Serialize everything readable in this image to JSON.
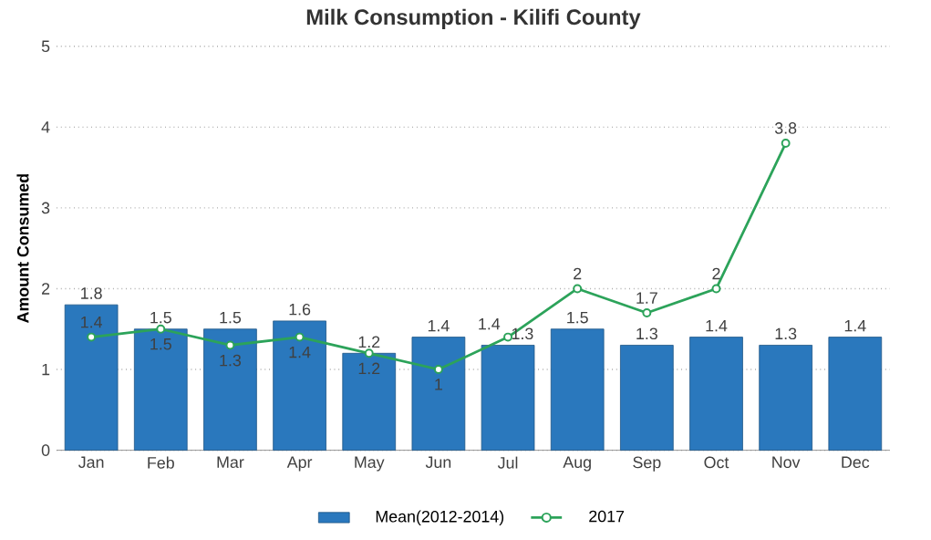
{
  "chart_data": {
    "type": "bar",
    "title": "Milk Consumption - Kilifi County",
    "ylabel": "Amount Consumed",
    "categories": [
      "Jan",
      "Feb",
      "Mar",
      "Apr",
      "May",
      "Jun",
      "Jul",
      "Aug",
      "Sep",
      "Oct",
      "Nov",
      "Dec"
    ],
    "series": [
      {
        "name": "Mean(2012-2014)",
        "color": "#2a78bd",
        "values": [
          1.8,
          1.5,
          1.5,
          1.6,
          1.2,
          1.4,
          1.3,
          1.5,
          1.3,
          1.4,
          1.3,
          1.4
        ]
      },
      {
        "name": "2017",
        "type": "line",
        "color": "#2ca35a",
        "marker": "circle",
        "values": [
          1.4,
          1.5,
          1.3,
          1.4,
          1.2,
          1,
          1.4,
          2,
          1.7,
          2,
          3.8,
          null
        ]
      }
    ],
    "ylim": [
      0,
      5
    ],
    "yticks": [
      0,
      1,
      2,
      3,
      4,
      5
    ],
    "grid": "y",
    "legend": "bottom",
    "data_labels": true
  }
}
